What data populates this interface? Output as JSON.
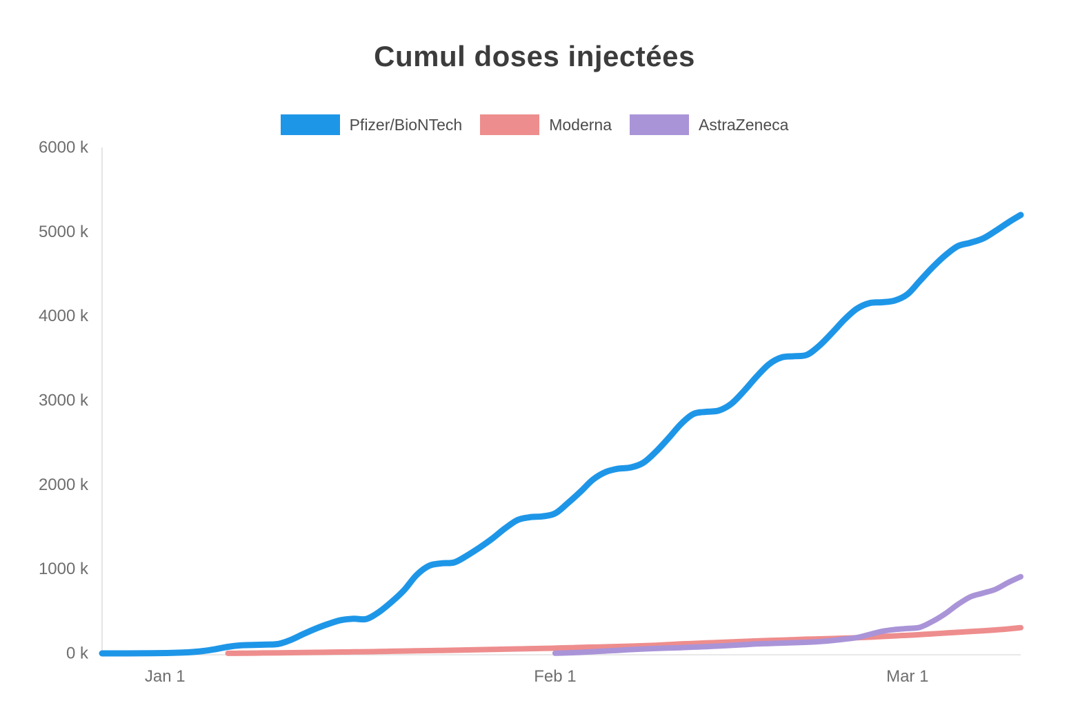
{
  "title": "Cumul doses injectées",
  "legend": [
    {
      "label": "Pfizer/BioNTech",
      "color": "#1e96e8"
    },
    {
      "label": "Moderna",
      "color": "#ee8d8d"
    },
    {
      "label": "AstraZeneca",
      "color": "#aa94d8"
    }
  ],
  "chart_data": {
    "type": "line",
    "title": "Cumul doses injectées",
    "xlabel": "",
    "ylabel": "",
    "legend_position": "top",
    "grid": false,
    "ylim": [
      0,
      6000
    ],
    "y_unit": "k doses",
    "y_ticks": [
      {
        "label": "6000 k",
        "value": 6000
      },
      {
        "label": "5000 k",
        "value": 5000
      },
      {
        "label": "4000 k",
        "value": 4000
      },
      {
        "label": "3000 k",
        "value": 3000
      },
      {
        "label": "2000 k",
        "value": 2000
      },
      {
        "label": "1000 k",
        "value": 1000
      },
      {
        "label": "0 k",
        "value": 0
      }
    ],
    "x_domain": [
      0,
      73
    ],
    "x_ticks": [
      {
        "label": "Jan 1",
        "day": 5
      },
      {
        "label": "Feb 1",
        "day": 36
      },
      {
        "label": "Mar 1",
        "day": 64
      }
    ],
    "series": [
      {
        "id": "moderna",
        "name": "Moderna",
        "color": "#ee8d8d",
        "start_day": 10,
        "values": [
          1,
          2,
          3,
          5,
          6,
          8,
          10,
          12,
          14,
          16,
          18,
          20,
          22,
          25,
          28,
          30,
          33,
          35,
          38,
          41,
          44,
          47,
          50,
          53,
          56,
          59,
          62,
          66,
          70,
          74,
          78,
          82,
          86,
          91,
          96,
          104,
          112,
          118,
          124,
          130,
          136,
          142,
          148,
          153,
          158,
          163,
          168,
          172,
          176,
          181,
          186,
          192,
          200,
          208,
          215,
          223,
          232,
          241,
          250,
          259,
          268,
          278,
          290,
          305
        ]
      },
      {
        "id": "astrazeneca",
        "name": "AstraZeneca",
        "color": "#aa94d8",
        "start_day": 36,
        "values": [
          2,
          6,
          12,
          20,
          28,
          36,
          45,
          52,
          58,
          63,
          68,
          74,
          80,
          87,
          95,
          103,
          112,
          117,
          122,
          127,
          132,
          140,
          152,
          168,
          188,
          225,
          262,
          283,
          295,
          310,
          380,
          470,
          580,
          670,
          715,
          760,
          840,
          910
        ]
      },
      {
        "id": "pfizer-biontech",
        "name": "Pfizer/BioNTech",
        "color": "#1e96e8",
        "start_day": 0,
        "values": [
          0,
          0,
          0,
          1,
          2,
          4,
          8,
          15,
          28,
          50,
          78,
          95,
          100,
          104,
          112,
          160,
          230,
          295,
          350,
          395,
          410,
          408,
          490,
          610,
          750,
          930,
          1040,
          1068,
          1080,
          1160,
          1255,
          1360,
          1480,
          1580,
          1615,
          1625,
          1660,
          1780,
          1915,
          2060,
          2150,
          2190,
          2205,
          2260,
          2390,
          2550,
          2720,
          2840,
          2865,
          2880,
          2960,
          3110,
          3280,
          3430,
          3510,
          3525,
          3540,
          3650,
          3800,
          3960,
          4090,
          4155,
          4165,
          4185,
          4260,
          4420,
          4580,
          4720,
          4830,
          4870,
          4920,
          5010,
          5110,
          5200
        ]
      }
    ]
  }
}
